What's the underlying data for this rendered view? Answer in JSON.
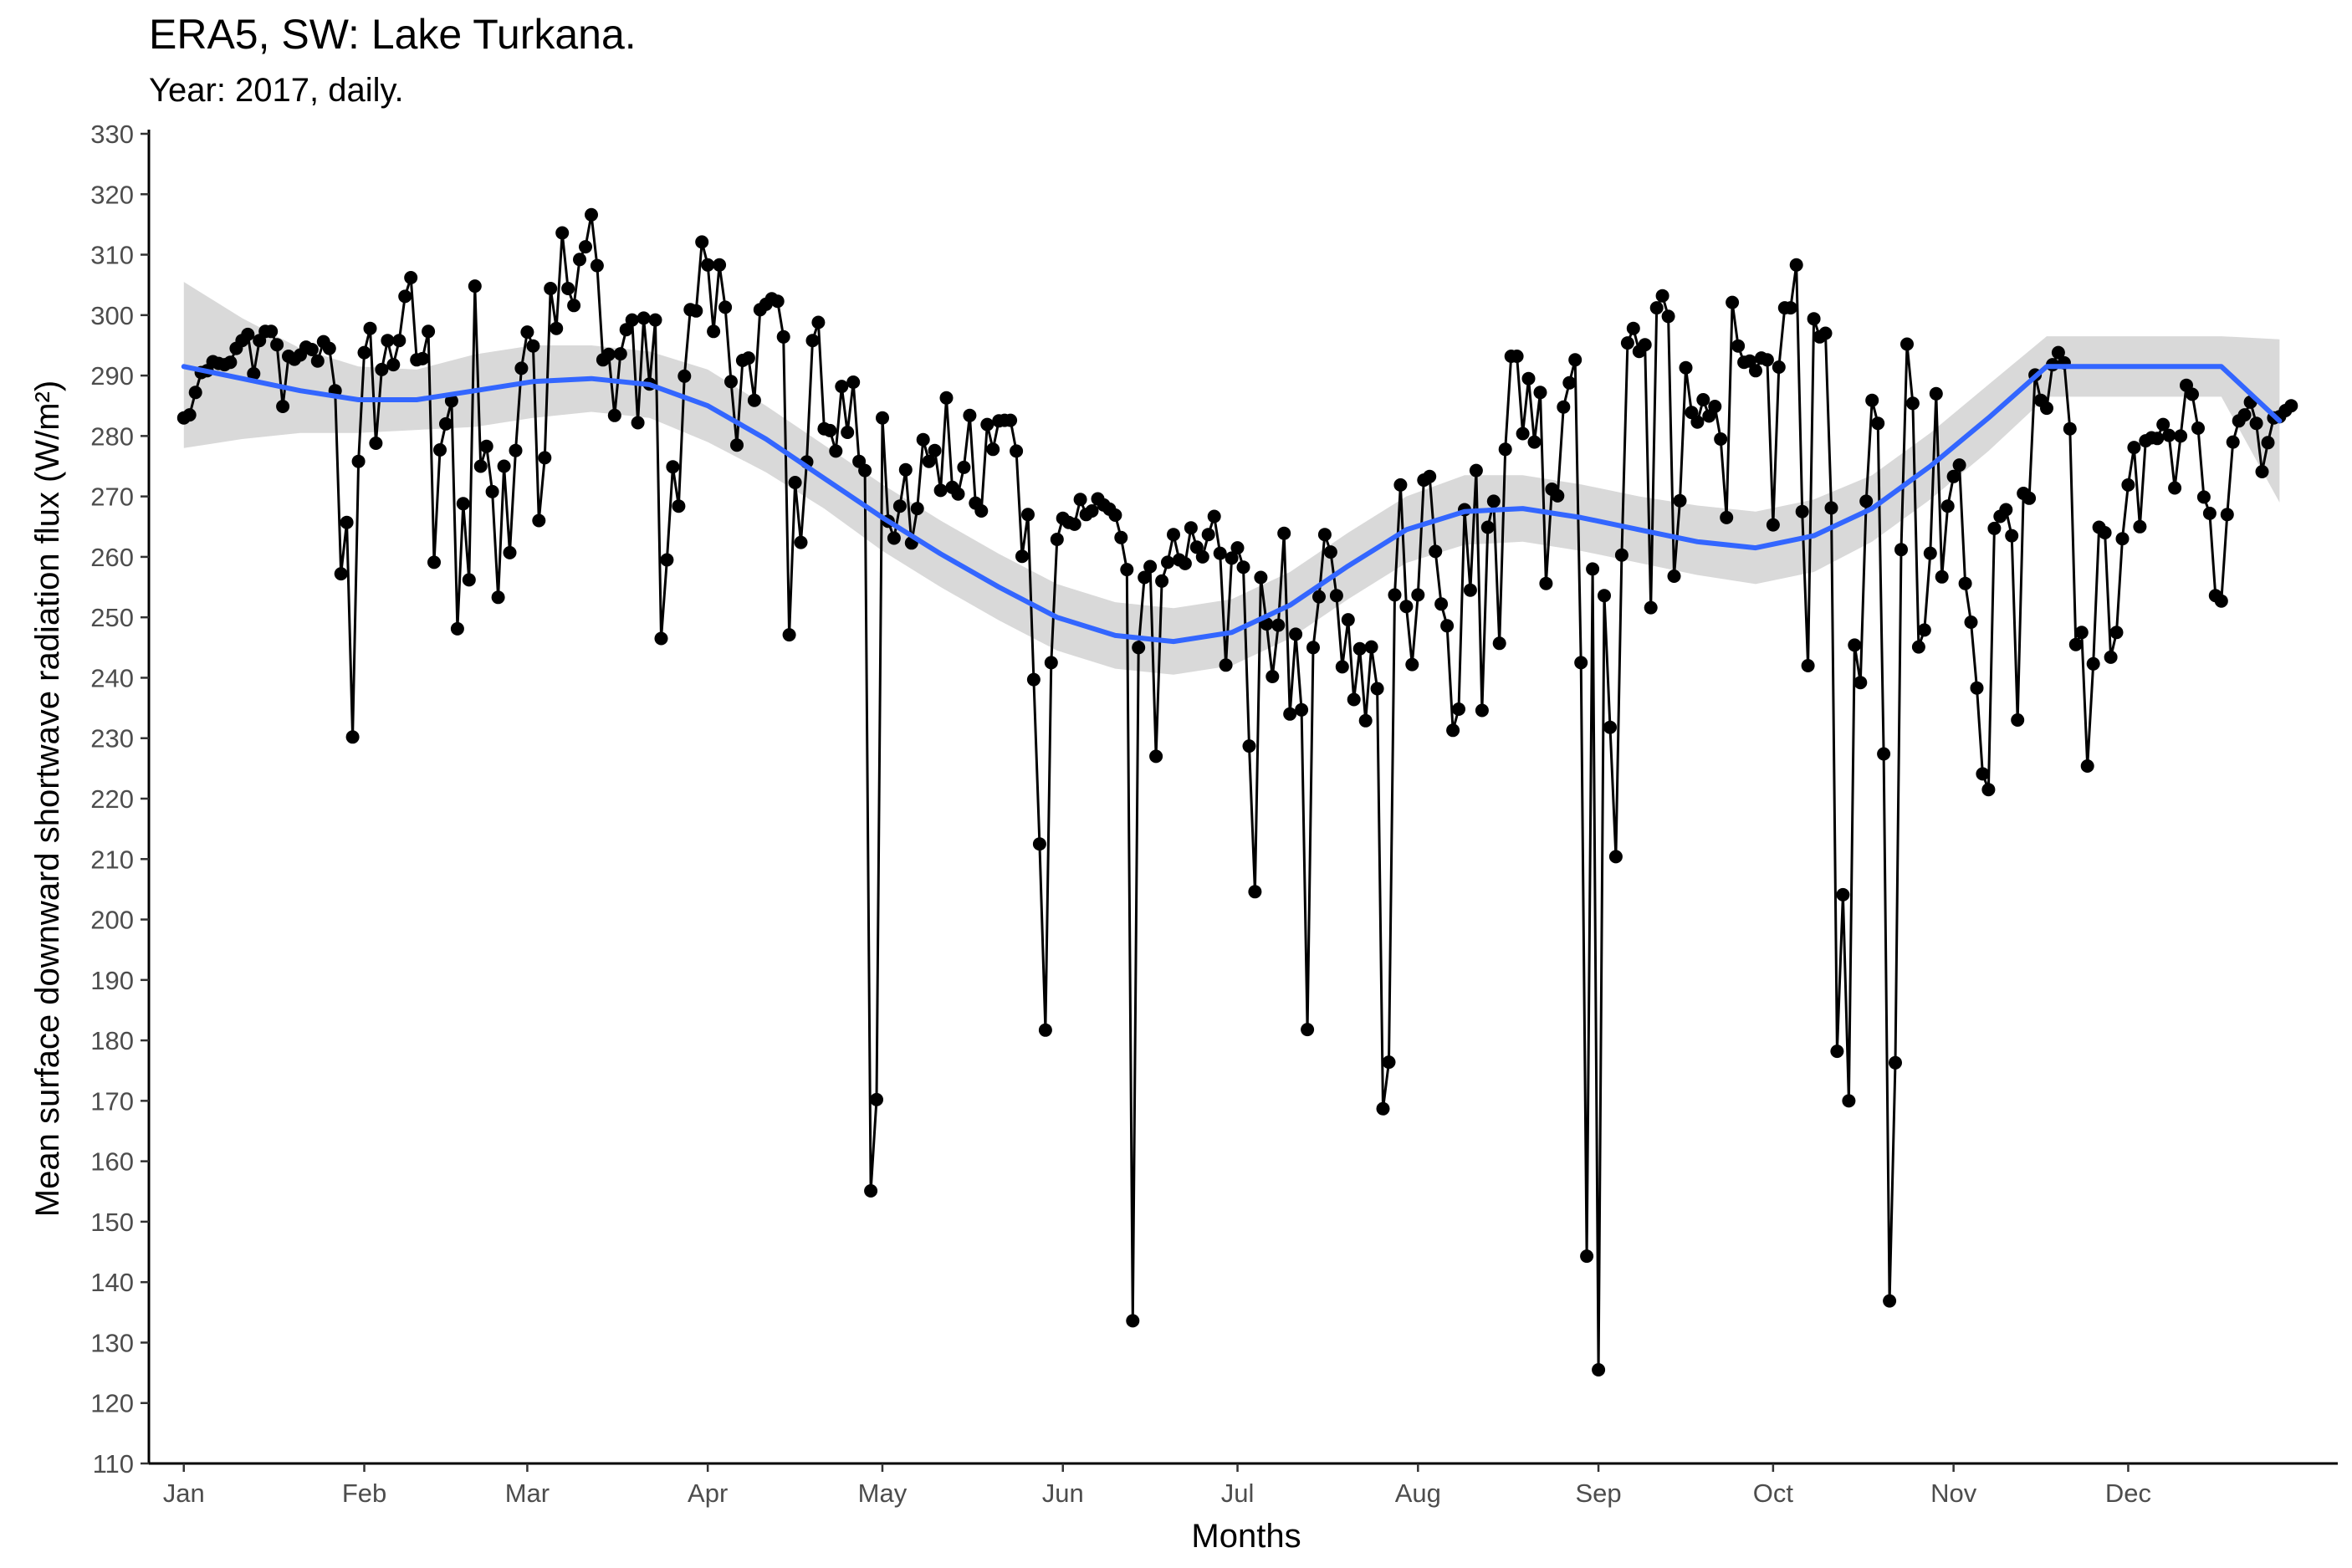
{
  "chart_data": {
    "type": "line",
    "title": "ERA5, SW: Lake Turkana.",
    "subtitle": "Year: 2017, daily.",
    "xlabel": "Months",
    "ylabel": "Mean surface downward shortwave radiation flux (W/m²)",
    "ylim": [
      110,
      330
    ],
    "yticks": [
      110,
      120,
      130,
      140,
      150,
      160,
      170,
      180,
      190,
      200,
      210,
      220,
      230,
      240,
      250,
      260,
      270,
      280,
      290,
      300,
      310,
      320,
      330
    ],
    "xlim_day": [
      -6,
      370
    ],
    "month_labels": [
      "Jan",
      "Feb",
      "Mar",
      "Apr",
      "May",
      "Jun",
      "Jul",
      "Aug",
      "Sep",
      "Oct",
      "Nov",
      "Dec"
    ],
    "month_start_days": [
      1,
      32,
      60,
      91,
      121,
      152,
      182,
      213,
      244,
      274,
      305,
      335
    ],
    "grid": false,
    "legend": "none",
    "colors": {
      "line": "#000000",
      "points": "#000000",
      "smooth": "#3366FF",
      "ribbon": "#d9d9d9"
    },
    "series": [
      {
        "values": [
          283.0,
          283.5,
          287.2,
          290.5,
          290.8,
          292.3,
          292.0,
          291.8,
          292.2,
          294.5,
          295.8,
          296.8,
          290.3,
          295.8,
          297.3,
          297.3,
          295.1,
          284.9,
          293.2,
          292.7,
          293.4,
          294.7,
          294.3,
          292.4,
          295.6,
          294.5,
          287.5,
          257.2,
          265.7,
          230.2,
          275.8,
          293.8,
          297.8,
          278.8,
          291.0,
          295.8,
          291.8,
          295.8,
          303.1,
          306.2,
          292.6,
          292.8,
          297.3,
          259.1,
          277.7,
          282.0,
          285.8,
          248.1,
          268.8,
          256.2,
          304.8,
          275.0,
          278.3,
          270.8,
          253.3,
          275.0,
          260.7,
          277.6,
          291.2,
          297.2,
          294.9,
          266.0,
          276.4,
          304.4,
          297.8,
          313.6,
          304.4,
          301.6,
          309.2,
          311.3,
          316.6,
          308.2,
          292.6,
          293.5,
          283.4,
          293.6,
          297.6,
          299.2,
          282.2,
          299.5,
          288.6,
          299.2,
          246.5,
          259.5,
          274.9,
          268.4,
          289.9,
          300.9,
          300.7,
          312.1,
          308.3,
          297.3,
          308.3,
          301.3,
          289.0,
          278.5,
          292.5,
          292.9,
          285.9,
          300.9,
          301.8,
          302.7,
          302.3,
          296.4,
          247.1,
          272.3,
          262.4,
          275.7,
          295.8,
          298.8,
          281.2,
          280.9,
          277.5,
          288.2,
          280.6,
          288.9,
          275.8,
          274.3,
          155.1,
          170.2,
          283.0,
          265.9,
          263.1,
          268.4,
          274.4,
          262.3,
          268.0,
          279.4,
          275.8,
          277.6,
          271.0,
          286.3,
          271.5,
          270.4,
          274.8,
          283.4,
          268.9,
          267.6,
          281.9,
          277.8,
          282.5,
          282.6,
          282.6,
          277.5,
          260.1,
          267.0,
          239.7,
          212.5,
          181.7,
          242.5,
          262.9,
          266.4,
          265.7,
          265.4,
          269.5,
          267.0,
          267.6,
          269.6,
          268.6,
          267.9,
          266.9,
          263.2,
          257.9,
          133.6,
          245.0,
          256.6,
          258.4,
          227.0,
          256.0,
          259.1,
          263.7,
          259.5,
          258.9,
          264.8,
          261.6,
          260.0,
          263.7,
          266.7,
          260.6,
          242.1,
          259.8,
          261.5,
          258.3,
          228.7,
          204.6,
          256.6,
          248.9,
          240.2,
          248.7,
          263.9,
          234.0,
          247.2,
          234.7,
          181.8,
          245.0,
          253.4,
          263.7,
          260.8,
          253.6,
          241.8,
          249.6,
          236.4,
          244.8,
          232.9,
          245.1,
          238.2,
          168.7,
          176.4,
          253.7,
          271.9,
          251.8,
          242.2,
          253.7,
          272.7,
          273.3,
          260.9,
          252.2,
          248.6,
          231.3,
          234.8,
          267.8,
          254.5,
          274.3,
          234.6,
          264.9,
          269.2,
          245.7,
          277.8,
          293.2,
          293.2,
          280.4,
          289.5,
          279.0,
          287.2,
          255.6,
          271.2,
          270.1,
          284.8,
          288.8,
          292.6,
          242.5,
          144.3,
          258.0,
          125.5,
          253.6,
          231.8,
          210.4,
          260.3,
          295.4,
          297.8,
          294.0,
          295.1,
          251.6,
          301.2,
          303.2,
          299.8,
          256.8,
          269.3,
          291.3,
          283.9,
          282.3,
          286.0,
          283.3,
          284.9,
          279.5,
          266.5,
          302.1,
          294.9,
          292.2,
          292.4,
          290.8,
          292.9,
          292.6,
          265.3,
          291.4,
          301.2,
          301.2,
          308.3,
          267.5,
          242.0,
          299.4,
          296.4,
          297.0,
          268.1,
          178.2,
          204.1,
          170.0,
          245.4,
          239.2,
          269.2,
          285.9,
          282.1,
          227.4,
          136.9,
          176.3,
          261.2,
          295.2,
          285.4,
          245.1,
          247.9,
          260.6,
          287.0,
          256.7,
          268.4,
          273.3,
          275.2,
          255.6,
          249.2,
          238.3,
          224.1,
          221.5,
          264.7,
          266.7,
          267.8,
          263.5,
          233.0,
          270.5,
          269.7,
          290.1,
          285.9,
          284.6,
          291.8,
          293.8,
          292.1,
          281.2,
          245.5,
          247.5,
          225.4,
          242.3,
          264.9,
          264.0,
          243.4,
          247.5,
          263.0,
          271.9,
          278.1,
          265.0,
          279.2,
          279.7,
          279.6,
          281.9,
          280.1,
          271.4,
          280.0,
          288.4,
          286.9,
          281.3,
          269.9,
          267.2,
          253.6,
          252.7,
          267.0,
          279.0,
          282.5,
          283.5,
          285.6,
          282.1,
          274.1,
          278.9,
          283.0,
          283.2,
          284.2,
          285.0
        ]
      }
    ],
    "smooth": {
      "x": [
        0,
        10,
        20,
        30,
        40,
        50,
        60,
        70,
        80,
        90,
        100,
        110,
        120,
        130,
        140,
        150,
        160,
        170,
        180,
        190,
        200,
        210,
        220,
        230,
        240,
        250,
        260,
        270,
        280,
        290,
        300,
        310,
        320,
        330,
        340,
        350,
        360
      ],
      "fit": [
        291.5,
        289.5,
        287.5,
        286.0,
        286.0,
        287.5,
        289.0,
        289.5,
        288.5,
        285.0,
        279.5,
        273.0,
        266.5,
        260.5,
        255.0,
        250.0,
        247.0,
        246.0,
        247.5,
        252.0,
        258.5,
        264.5,
        267.5,
        268.0,
        266.5,
        264.5,
        262.5,
        261.5,
        263.5,
        268.0,
        275.0,
        283.0,
        291.5,
        291.5,
        291.5,
        291.5,
        282.5
      ],
      "lower": [
        278.0,
        279.5,
        280.5,
        280.5,
        281.0,
        281.5,
        283.0,
        284.0,
        283.0,
        279.0,
        274.0,
        268.0,
        261.0,
        255.0,
        249.5,
        244.5,
        241.5,
        240.5,
        242.0,
        246.5,
        253.0,
        259.0,
        262.0,
        262.5,
        261.0,
        259.0,
        257.0,
        255.5,
        257.5,
        262.5,
        269.5,
        277.5,
        286.5,
        286.5,
        286.5,
        286.5,
        269.0
      ],
      "upper": [
        305.5,
        299.5,
        294.5,
        291.5,
        291.0,
        293.5,
        295.0,
        295.0,
        294.0,
        291.0,
        285.0,
        278.5,
        272.0,
        266.0,
        260.5,
        255.5,
        252.5,
        251.5,
        253.0,
        257.5,
        264.0,
        270.0,
        273.5,
        273.5,
        272.0,
        270.0,
        268.5,
        267.5,
        269.5,
        273.5,
        280.5,
        288.5,
        296.5,
        296.5,
        296.5,
        296.5,
        296.0
      ]
    }
  }
}
